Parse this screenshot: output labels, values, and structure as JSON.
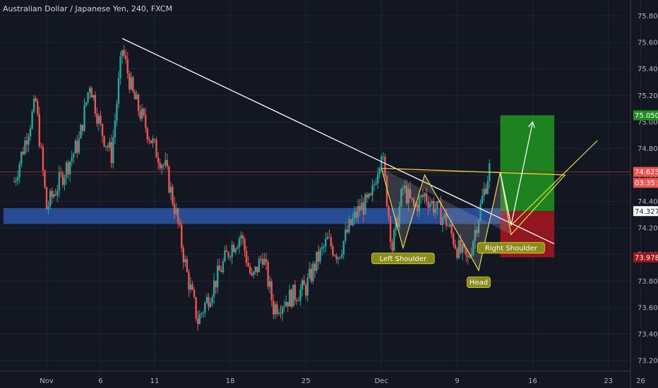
{
  "header": {
    "symbol_title": "Australian Dollar / Japanese Yen, 240, FXCM"
  },
  "colors": {
    "background": "#131722",
    "grid": "#1e2433",
    "up": "#26a69a",
    "down": "#ef5350",
    "trendline": "#ffffff",
    "pattern": "#e6e040",
    "support_zone": "#2d56a8",
    "target_zone": "#1e8f1e",
    "stop_zone": "#a0161f",
    "hline": "#8b2a2a"
  },
  "chart_data": {
    "type": "candlestick",
    "ylim": [
      73.12,
      75.92
    ],
    "y_ticks": [
      73.2,
      73.4,
      73.6,
      73.8,
      74.0,
      74.2,
      74.4,
      74.6,
      74.8,
      75.0,
      75.2,
      75.4,
      75.6,
      75.8
    ],
    "y_tick_labels": [
      "73.200",
      "73.400",
      "73.600",
      "73.800",
      "74.000",
      "74.200",
      "74.400",
      "74.600",
      "74.800",
      "75.000",
      "75.200",
      "75.400",
      "75.600",
      "75.800"
    ],
    "x_ticks": [
      {
        "label": "Nov",
        "date": "2019-11-01"
      },
      {
        "label": "6",
        "date": "2019-11-06"
      },
      {
        "label": "11",
        "date": "2019-11-11"
      },
      {
        "label": "18",
        "date": "2019-11-18"
      },
      {
        "label": "25",
        "date": "2019-11-25"
      },
      {
        "label": "Dec",
        "date": "2019-12-02"
      },
      {
        "label": "9",
        "date": "2019-12-09"
      },
      {
        "label": "16",
        "date": "2019-12-16"
      },
      {
        "label": "23",
        "date": "2019-12-23"
      },
      {
        "label": "26",
        "date": "2019-12-26"
      }
    ],
    "grid": true,
    "price_path": [
      {
        "date": "2019-10-29",
        "price": 74.55
      },
      {
        "date": "2019-10-31",
        "price": 75.15
      },
      {
        "date": "2019-11-01",
        "price": 74.35
      },
      {
        "date": "2019-11-04",
        "price": 74.85
      },
      {
        "date": "2019-11-05",
        "price": 75.3
      },
      {
        "date": "2019-11-06",
        "price": 74.95
      },
      {
        "date": "2019-11-07",
        "price": 74.75
      },
      {
        "date": "2019-11-08",
        "price": 75.55
      },
      {
        "date": "2019-11-09",
        "price": 75.2
      },
      {
        "date": "2019-11-11",
        "price": 74.8
      },
      {
        "date": "2019-11-12",
        "price": 74.65
      },
      {
        "date": "2019-11-13",
        "price": 74.3
      },
      {
        "date": "2019-11-14",
        "price": 73.85
      },
      {
        "date": "2019-11-15",
        "price": 73.5
      },
      {
        "date": "2019-11-18",
        "price": 74.05
      },
      {
        "date": "2019-11-19",
        "price": 74.15
      },
      {
        "date": "2019-11-20",
        "price": 73.8
      },
      {
        "date": "2019-11-21",
        "price": 74.0
      },
      {
        "date": "2019-11-22",
        "price": 73.6
      },
      {
        "date": "2019-11-25",
        "price": 73.75
      },
      {
        "date": "2019-11-26",
        "price": 73.95
      },
      {
        "date": "2019-11-27",
        "price": 74.1
      },
      {
        "date": "2019-11-28",
        "price": 74.0
      },
      {
        "date": "2019-11-29",
        "price": 74.2
      },
      {
        "date": "2019-11-30",
        "price": 74.35
      },
      {
        "date": "2019-12-01",
        "price": 74.4
      },
      {
        "date": "2019-12-02",
        "price": 74.8
      },
      {
        "date": "2019-12-03",
        "price": 74.05
      },
      {
        "date": "2019-12-04",
        "price": 74.5
      },
      {
        "date": "2019-12-05",
        "price": 74.35
      },
      {
        "date": "2019-12-06",
        "price": 74.45
      },
      {
        "date": "2019-12-08",
        "price": 74.25
      },
      {
        "date": "2019-12-09",
        "price": 74.05
      },
      {
        "date": "2019-12-10",
        "price": 73.95
      },
      {
        "date": "2019-12-11",
        "price": 74.3
      },
      {
        "date": "2019-12-12",
        "price": 74.65
      }
    ],
    "annotations": {
      "trendline": {
        "from": {
          "date": "2019-11-08",
          "price": 75.63
        },
        "to": {
          "date": "2019-12-18",
          "price": 74.08
        }
      },
      "support_zone": {
        "from_date": "2019-10-28",
        "to_date": "2019-12-14",
        "low": 74.23,
        "high": 74.35
      },
      "neckline": {
        "from": {
          "date": "2019-12-02",
          "price": 74.65
        },
        "to": {
          "date": "2019-12-19",
          "price": 74.6
        }
      },
      "pattern_points": [
        {
          "date": "2019-12-02",
          "price": 74.65
        },
        {
          "date": "2019-12-04",
          "price": 74.05
        },
        {
          "date": "2019-12-06",
          "price": 74.6
        },
        {
          "date": "2019-12-11",
          "price": 73.88
        },
        {
          "date": "2019-12-13",
          "price": 74.62
        },
        {
          "date": "2019-12-14",
          "price": 74.15
        },
        {
          "date": "2019-12-19",
          "price": 74.6
        }
      ],
      "projection_up": [
        {
          "date": "2019-12-13",
          "price": 74.62
        },
        {
          "date": "2019-12-14",
          "price": 74.22
        },
        {
          "date": "2019-12-16",
          "price": 75.0
        }
      ],
      "projection_rise": [
        {
          "date": "2019-12-14",
          "price": 74.22
        },
        {
          "date": "2019-12-22",
          "price": 74.86
        }
      ],
      "target_zone": {
        "from_date": "2019-12-13",
        "to_date": "2019-12-18",
        "low": 74.327,
        "high": 75.05
      },
      "stop_zone": {
        "from_date": "2019-12-13",
        "to_date": "2019-12-18",
        "low": 73.978,
        "high": 74.327
      },
      "labels": [
        {
          "text": "Left Shoulder",
          "date": "2019-12-04",
          "price": 73.97
        },
        {
          "text": "Head",
          "date": "2019-12-11",
          "price": 73.79
        },
        {
          "text": "Right Shoulder",
          "date": "2019-12-14",
          "price": 74.05
        }
      ]
    },
    "price_tags": [
      {
        "value": "75.050",
        "price": 75.05,
        "bg": "#1e8f1e",
        "fg": "#ffffff"
      },
      {
        "value": "74.623",
        "price": 74.623,
        "bg": "#ef5350",
        "fg": "#ffffff"
      },
      {
        "value": "03:35:14",
        "price": 74.54,
        "bg": "#ef5350",
        "fg": "#ffffff"
      },
      {
        "value": "74.327",
        "price": 74.327,
        "bg": "#ffffff",
        "fg": "#131722"
      },
      {
        "value": "73.978",
        "price": 73.978,
        "bg": "#a0161f",
        "fg": "#ffffff"
      }
    ],
    "last_price": 74.623
  }
}
